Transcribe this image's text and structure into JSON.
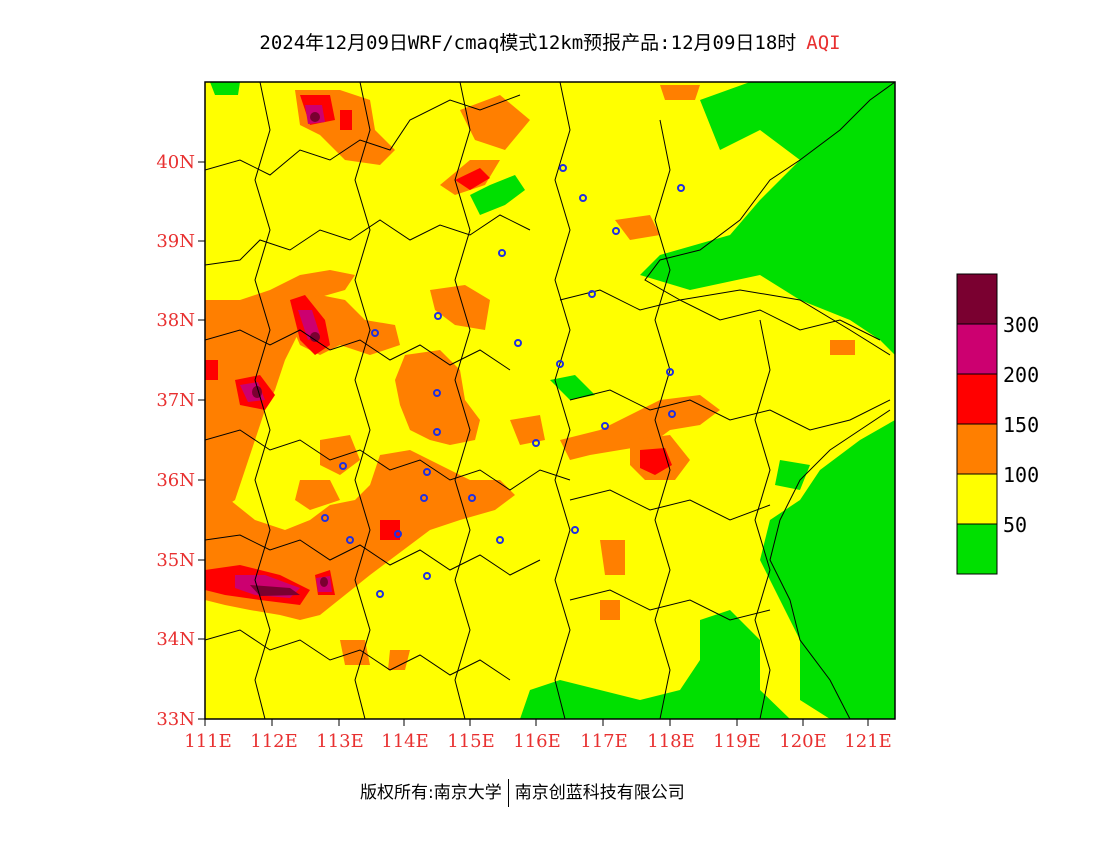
{
  "title": {
    "main": "2024年12月09日WRF/cmaq模式12km预报产品:12月09日18时",
    "variable": "AQI"
  },
  "footer": {
    "copyright": "版权所有:南京大学",
    "company": "南京创蓝科技有限公司"
  },
  "axes": {
    "lat_labels": [
      "40N",
      "39N",
      "38N",
      "37N",
      "36N",
      "35N",
      "34N",
      "33N"
    ],
    "lon_labels": [
      "111E",
      "112E",
      "113E",
      "114E",
      "115E",
      "116E",
      "117E",
      "118E",
      "119E",
      "120E",
      "121E"
    ],
    "label_color": "#e83030"
  },
  "legend": {
    "labels": [
      "300",
      "200",
      "150",
      "100",
      "50"
    ],
    "colors": [
      "#7a0030",
      "#cc0070",
      "#ff0000",
      "#ff7f00",
      "#ffff00",
      "#00e000"
    ]
  },
  "colors": {
    "good": "#00e000",
    "moderate": "#ffff00",
    "sensitive": "#ff7f00",
    "unhealthy": "#ff0000",
    "very_unhealthy": "#cc0070",
    "hazardous": "#7a0030",
    "boundary": "#000000",
    "city_marker": "#2030e0"
  }
}
